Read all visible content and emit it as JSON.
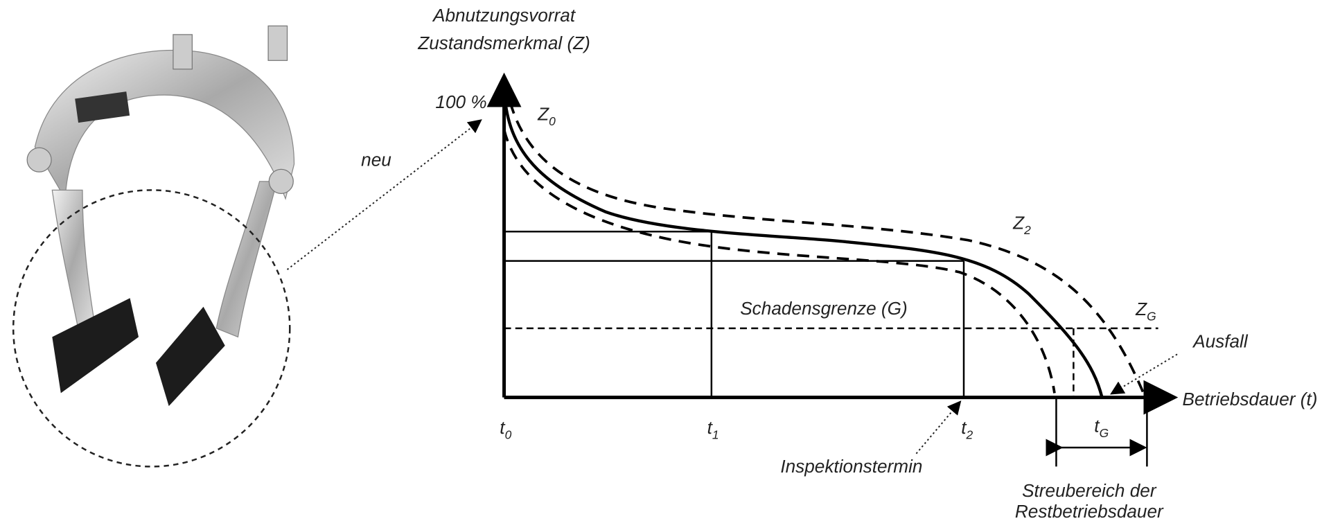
{
  "y_axis": {
    "title_lines": [
      "Abnutzungsvorrat",
      "Zustandsmerkmal (Z)"
    ],
    "top_label": "100 %"
  },
  "x_axis": {
    "title": "Betriebsdauer (t)"
  },
  "new_label": "neu",
  "curves": [
    {
      "letter": "Z",
      "sub": "0"
    },
    {
      "letter": "Z",
      "sub": "2"
    },
    {
      "letter": "Z",
      "sub": "G"
    }
  ],
  "damage_limit": "Schadensgrenze (G)",
  "failure": "Ausfall",
  "times": [
    {
      "letter": "t",
      "sub": "0"
    },
    {
      "letter": "t",
      "sub": "1"
    },
    {
      "letter": "t",
      "sub": "2"
    },
    {
      "letter": "t",
      "sub": "G"
    }
  ],
  "inspection": "Inspektionstermin",
  "scatter_range_lines": [
    "Streubereich der",
    "Restbetriebsdauer"
  ]
}
